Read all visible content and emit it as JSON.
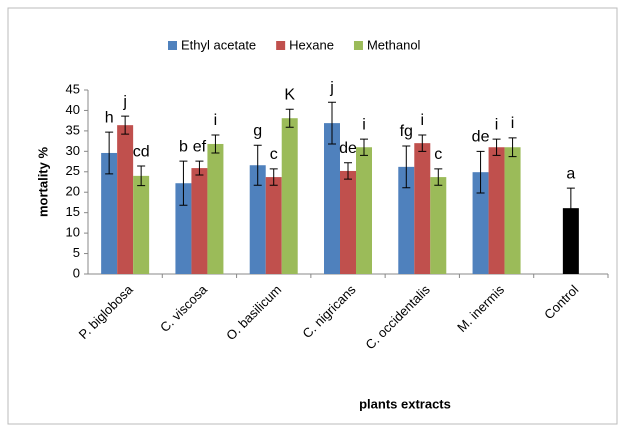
{
  "chart_data": {
    "type": "bar",
    "x_label": "plants extracts",
    "y_label": "mortality %",
    "categories": [
      "P. biglobosa",
      "C. viscosa",
      "O. basilicum",
      "C. nigricans",
      "C. occidentalis",
      "M. inermis",
      "Control"
    ],
    "ylim": [
      0,
      45
    ],
    "yticks": [
      0,
      5,
      10,
      15,
      20,
      25,
      30,
      35,
      40,
      45
    ],
    "grid": false,
    "legend": "top",
    "series": [
      {
        "name": "Ethyl acetate",
        "color": "#4f81bd",
        "values": [
          29.6,
          22.2,
          26.6,
          36.9,
          26.2,
          24.9,
          null
        ],
        "errors": [
          5.1,
          5.4,
          4.9,
          5.1,
          5.1,
          5.1,
          null
        ],
        "letters": [
          "h",
          "b",
          "g",
          "j",
          "fg",
          "de",
          null
        ]
      },
      {
        "name": "Hexane",
        "color": "#c0504d",
        "values": [
          36.4,
          25.9,
          23.7,
          25.2,
          32,
          31,
          null
        ],
        "errors": [
          2.2,
          1.7,
          2,
          2,
          2,
          2,
          null
        ],
        "letters": [
          "j",
          "ef",
          "c",
          "de",
          "i",
          "i",
          null
        ]
      },
      {
        "name": "Methanol",
        "color": "#9bbb59",
        "values": [
          24,
          31.8,
          38.1,
          31,
          23.7,
          31,
          null
        ],
        "errors": [
          2.4,
          2.2,
          2.2,
          2,
          2,
          2.3,
          null
        ],
        "letters": [
          "cd",
          "i",
          "K",
          "i",
          "c",
          "i",
          null
        ]
      },
      {
        "color": "#000000",
        "values": [
          null,
          null,
          null,
          null,
          null,
          null,
          16.1
        ],
        "errors": [
          null,
          null,
          null,
          null,
          null,
          null,
          4.9
        ],
        "letters": [
          null,
          null,
          null,
          null,
          null,
          null,
          "a"
        ]
      }
    ]
  }
}
